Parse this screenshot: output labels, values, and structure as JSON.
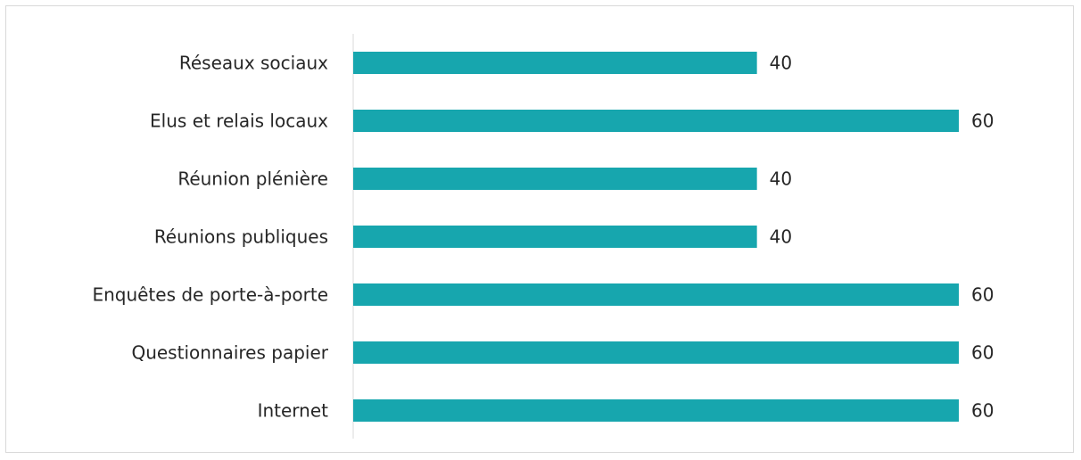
{
  "chart_data": {
    "type": "bar",
    "orientation": "horizontal",
    "categories": [
      "Réseaux sociaux",
      "Elus et relais locaux",
      "Réunion plénière",
      "Réunions publiques",
      "Enquêtes de porte-à-porte",
      "Questionnaires  papier",
      "Internet"
    ],
    "values": [
      40,
      60,
      40,
      40,
      60,
      60,
      60
    ],
    "data_labels": [
      "40",
      "60",
      "40",
      "40",
      "60",
      "60",
      "60"
    ],
    "title": "",
    "xlabel": "",
    "ylabel": "",
    "xlim": [
      0,
      60
    ],
    "grid": false,
    "legend": "none",
    "bar_color": "#17a6ae"
  }
}
